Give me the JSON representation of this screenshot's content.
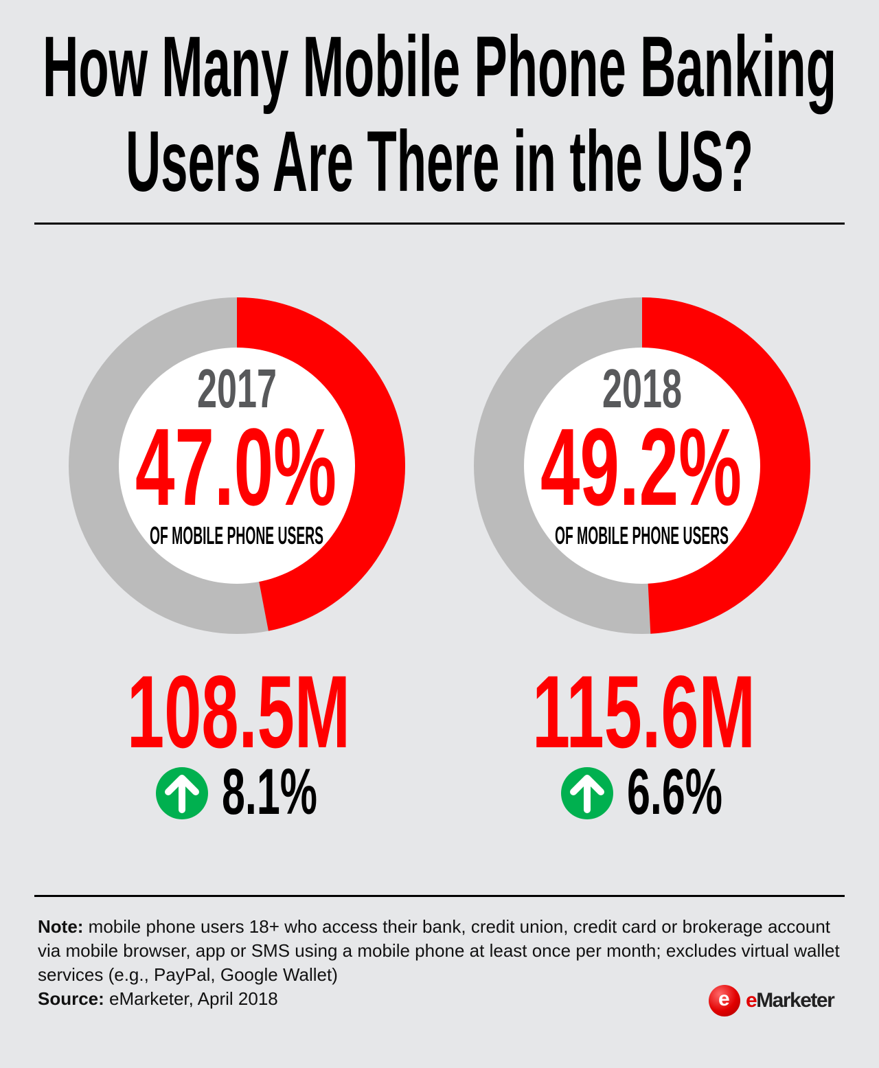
{
  "title": {
    "line1": "How Many Mobile Phone Banking",
    "line2": "Users Are There in the US?"
  },
  "colors": {
    "accent": "#ff0000",
    "remainder": "#bbbbbb",
    "inner": "#ffffff",
    "year": "#58595b",
    "up_arrow": "#00b04f"
  },
  "chart_data": {
    "type": "donut",
    "panels": [
      {
        "year": "2017",
        "share_pct": 47.0,
        "share_label": "47.0%",
        "caption": "OF MOBILE PHONE USERS",
        "users": "108.5M",
        "growth_label": "8.1%",
        "growth_direction": "up"
      },
      {
        "year": "2018",
        "share_pct": 49.2,
        "share_label": "49.2%",
        "caption": "OF MOBILE PHONE USERS",
        "users": "115.6M",
        "growth_label": "6.6%",
        "growth_direction": "up"
      }
    ]
  },
  "footer": {
    "note_label": "Note:",
    "note_text": "mobile phone users 18+ who access their bank, credit union, credit card or brokerage account via mobile browser, app or SMS using a mobile phone at least once per month; excludes virtual wallet services (e.g., PayPal, Google Wallet)",
    "source_label": "Source:",
    "source_text": "eMarketer, April 2018",
    "logo": "eMarketer"
  }
}
